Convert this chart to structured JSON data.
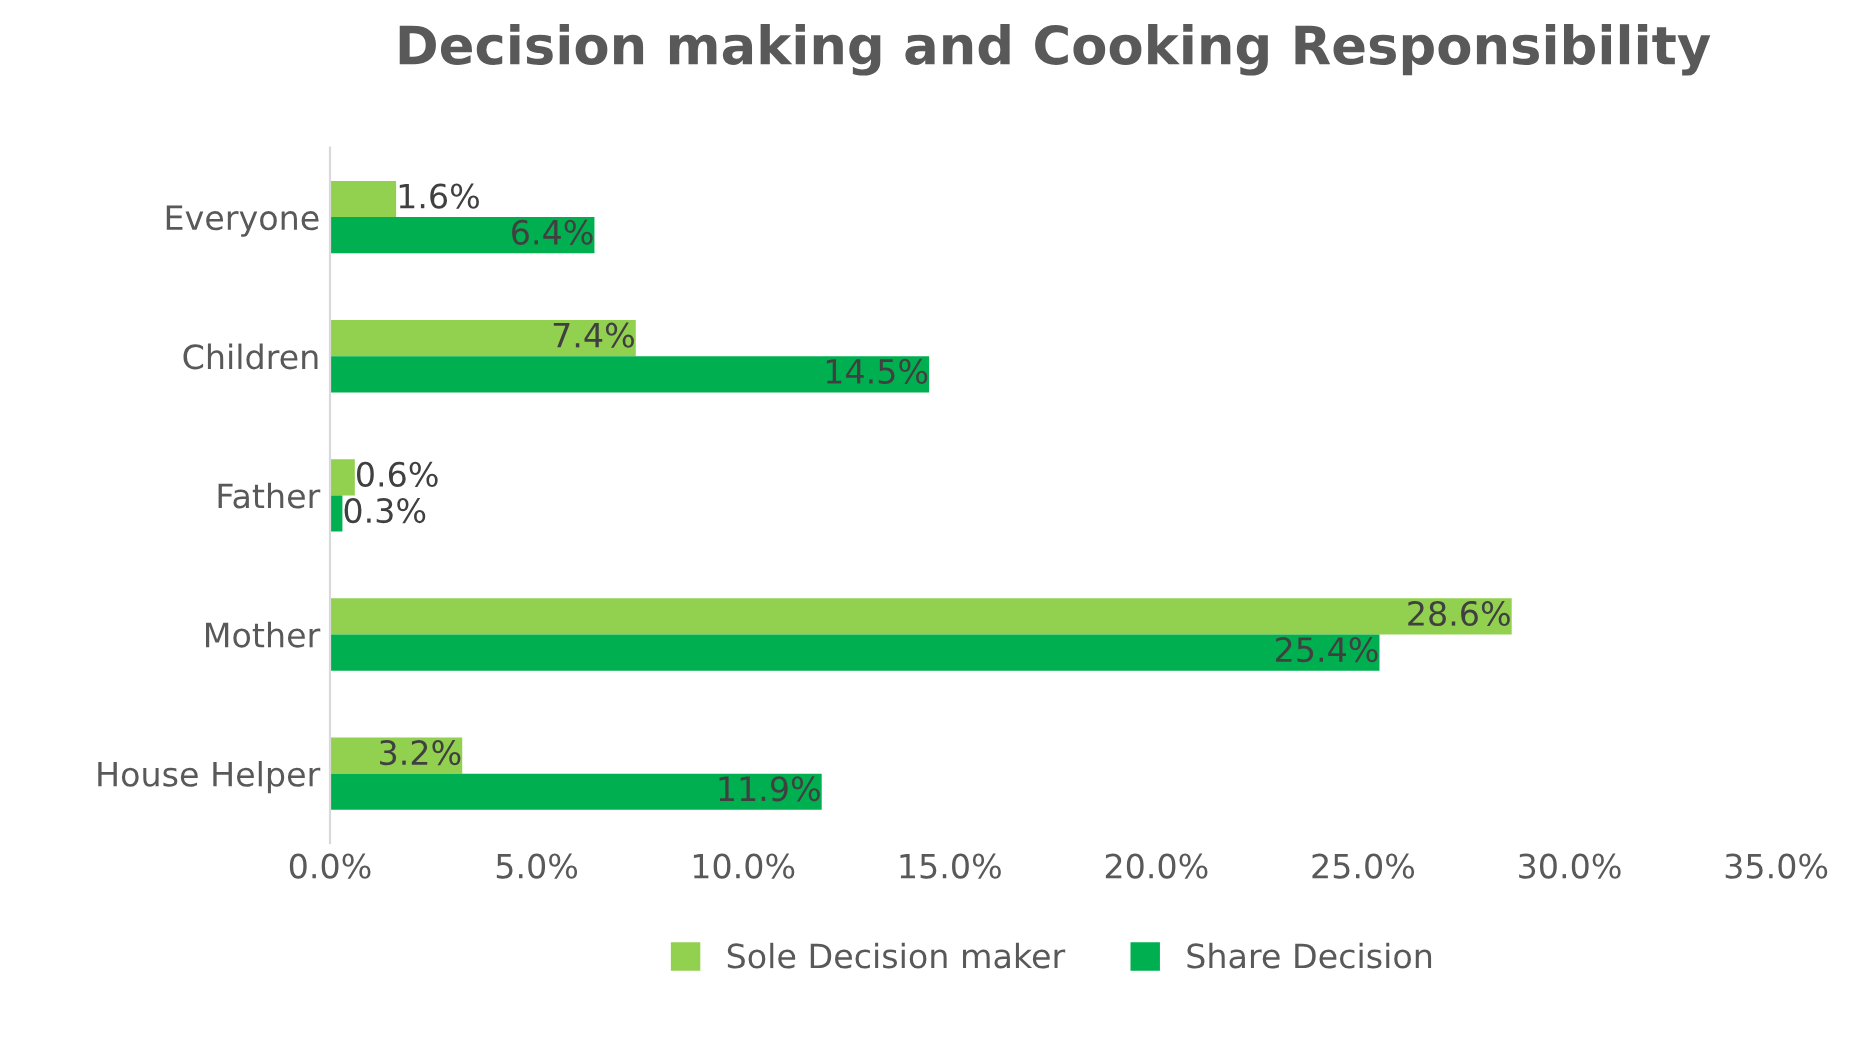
{
  "chart_data": {
    "type": "bar",
    "orientation": "horizontal",
    "title": "Decision making and Cooking Responsibility",
    "categories": [
      "Everyone",
      "Children",
      "Father",
      "Mother",
      "House Helper"
    ],
    "series": [
      {
        "name": "Sole Decision maker",
        "color": "#92d050",
        "values": [
          1.6,
          7.4,
          0.6,
          28.6,
          3.2
        ],
        "value_labels": [
          "1.6%",
          "7.4%",
          "0.6%",
          "28.6%",
          "3.2%"
        ]
      },
      {
        "name": "Share Decision",
        "color": "#00b050",
        "values": [
          6.4,
          14.5,
          0.3,
          25.4,
          11.9
        ],
        "value_labels": [
          "6.4%",
          "14.5%",
          "0.3%",
          "25.4%",
          "11.9%"
        ]
      }
    ],
    "xlim": [
      0,
      35
    ],
    "xticks": [
      {
        "value": 0,
        "label": "0.0%"
      },
      {
        "value": 5,
        "label": "5.0%"
      },
      {
        "value": 10,
        "label": "10.0%"
      },
      {
        "value": 15,
        "label": "15.0%"
      },
      {
        "value": 20,
        "label": "20.0%"
      },
      {
        "value": 25,
        "label": "25.0%"
      },
      {
        "value": 30,
        "label": "30.0%"
      },
      {
        "value": 35,
        "label": "35.0%"
      }
    ],
    "grid": false,
    "legend": "bottom"
  }
}
